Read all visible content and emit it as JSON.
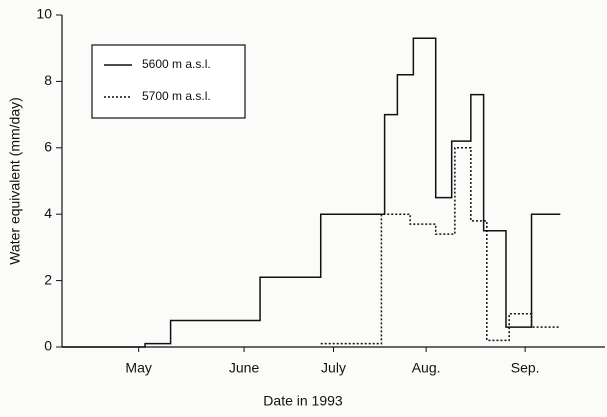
{
  "chart_data": {
    "type": "line",
    "step": "post",
    "x_label": "Date in 1993",
    "y_label": "Water equivalent (mm/day)",
    "xlim": [
      110,
      280
    ],
    "xticks": [
      {
        "value": 134,
        "label": "May"
      },
      {
        "value": 167,
        "label": "June"
      },
      {
        "value": 195,
        "label": "July"
      },
      {
        "value": 224,
        "label": "Aug."
      },
      {
        "value": 255,
        "label": "Sep."
      }
    ],
    "ylim": [
      0,
      10
    ],
    "yticks": [
      0,
      2,
      4,
      6,
      8,
      10
    ],
    "legend": "upper-left",
    "series": [
      {
        "name": "5600 m a.s.l.",
        "color": "#111111",
        "dash": "solid",
        "x": [
          110,
          136,
          144,
          172,
          191,
          211,
          215,
          220,
          227,
          232,
          238,
          242,
          249,
          257,
          266
        ],
        "values": [
          0,
          0.1,
          0.8,
          2.1,
          4.0,
          7.0,
          8.2,
          9.3,
          4.5,
          6.2,
          7.6,
          3.5,
          0.6,
          4.0,
          4.0
        ]
      },
      {
        "name": "5700 m a.s.l.",
        "color": "#111111",
        "dash": "dotted",
        "x": [
          191,
          210,
          219,
          227,
          233,
          238,
          243,
          250,
          257,
          266
        ],
        "values": [
          0.1,
          4.0,
          3.7,
          3.4,
          6.0,
          3.8,
          0.2,
          1.0,
          0.6,
          0.6
        ]
      }
    ]
  }
}
